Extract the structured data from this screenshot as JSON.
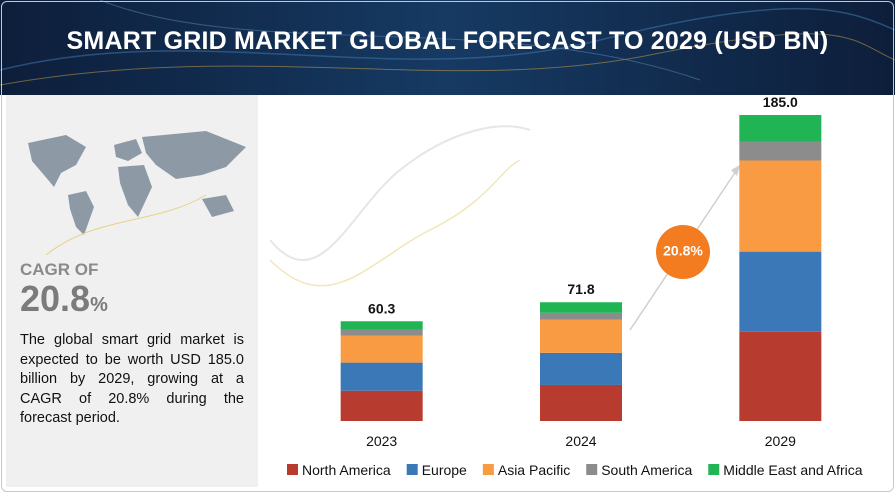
{
  "header": {
    "title": "SMART GRID MARKET GLOBAL FORECAST TO 2029 (USD BN)"
  },
  "sidebar": {
    "cagr_label": "CAGR OF",
    "cagr_value": "20.8",
    "cagr_unit": "%",
    "description": "The global smart grid market is expected to be worth USD 185.0 billion by 2029, growing at a CAGR of 20.8% during the forecast period."
  },
  "chart_data": {
    "type": "stacked-bar",
    "categories": [
      "2023",
      "2024",
      "2029"
    ],
    "series": [
      {
        "name": "North America",
        "color": "#b83b30",
        "values": [
          18.3,
          21.8,
          53.9
        ]
      },
      {
        "name": "Europe",
        "color": "#3a78b8",
        "values": [
          17.0,
          19.4,
          48.5
        ]
      },
      {
        "name": "Asia Pacific",
        "color": "#f89b42",
        "values": [
          16.4,
          20.0,
          55.1
        ]
      },
      {
        "name": "South America",
        "color": "#8c8c8c",
        "values": [
          3.6,
          4.2,
          11.5
        ]
      },
      {
        "name": "Middle East and Africa",
        "color": "#20b455",
        "values": [
          5.0,
          6.4,
          16.0
        ]
      }
    ],
    "totals": {
      "values": [
        60.3,
        71.8,
        185.0
      ],
      "value_labels": [
        "60.3",
        "71.8",
        "185.0"
      ]
    },
    "annotation": "20.8%",
    "legend": "bottom"
  }
}
